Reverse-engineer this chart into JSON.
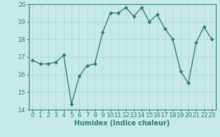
{
  "x": [
    0,
    1,
    2,
    3,
    4,
    5,
    6,
    7,
    8,
    9,
    10,
    11,
    12,
    13,
    14,
    15,
    16,
    17,
    18,
    19,
    20,
    21,
    22,
    23
  ],
  "y": [
    16.8,
    16.6,
    16.6,
    16.7,
    17.1,
    14.3,
    15.9,
    16.5,
    16.6,
    18.4,
    19.5,
    19.5,
    19.8,
    19.3,
    19.8,
    19.0,
    19.4,
    18.6,
    18.0,
    16.2,
    15.5,
    17.8,
    18.7,
    18.0
  ],
  "line_color": "#2d7d6f",
  "bg_color": "#c8eae6",
  "grid_color": "#b0d8d4",
  "xlabel": "Humidex (Indice chaleur)",
  "ylim": [
    14,
    20
  ],
  "xlim": [
    -0.5,
    23.5
  ],
  "yticks": [
    14,
    15,
    16,
    17,
    18,
    19,
    20
  ],
  "xticks": [
    0,
    1,
    2,
    3,
    4,
    5,
    6,
    7,
    8,
    9,
    10,
    11,
    12,
    13,
    14,
    15,
    16,
    17,
    18,
    19,
    20,
    21,
    22,
    23
  ],
  "marker": "D",
  "marker_size": 2.5,
  "line_width": 1.0,
  "xlabel_fontsize": 7,
  "tick_fontsize": 6.5
}
